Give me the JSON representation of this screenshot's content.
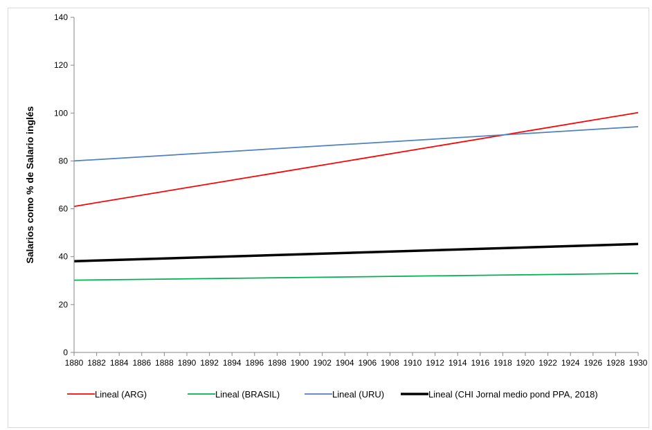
{
  "chart_data": {
    "type": "line",
    "title": "",
    "xlabel": "",
    "ylabel": "Salarios como % de Salario inglés",
    "xlim": [
      1880,
      1930
    ],
    "ylim": [
      0,
      140
    ],
    "x_ticks": [
      1880,
      1882,
      1884,
      1886,
      1888,
      1890,
      1892,
      1894,
      1896,
      1898,
      1900,
      1902,
      1904,
      1906,
      1908,
      1910,
      1912,
      1914,
      1916,
      1918,
      1920,
      1922,
      1924,
      1926,
      1928,
      1930
    ],
    "y_ticks": [
      0,
      20,
      40,
      60,
      80,
      100,
      120,
      140
    ],
    "grid": false,
    "legend_position": "bottom",
    "series": [
      {
        "name": "Lineal (ARG)",
        "color": "#ff0000",
        "x": [
          1880,
          1930
        ],
        "values": [
          61.0,
          100.2
        ],
        "line_width": "thin"
      },
      {
        "name": "Lineal (BRASIL)",
        "color": "#00b050",
        "x": [
          1880,
          1930
        ],
        "values": [
          30.2,
          33.0
        ],
        "line_width": "thin"
      },
      {
        "name": "Lineal (URU)",
        "color": "#4f81bd",
        "x": [
          1880,
          1930
        ],
        "values": [
          80.0,
          94.3
        ],
        "line_width": "thin"
      },
      {
        "name": "Lineal (CHI Jornal medio pond PPA, 2018)",
        "color": "#000000",
        "x": [
          1880,
          1930
        ],
        "values": [
          38.1,
          45.3
        ],
        "line_width": "thick"
      }
    ]
  }
}
